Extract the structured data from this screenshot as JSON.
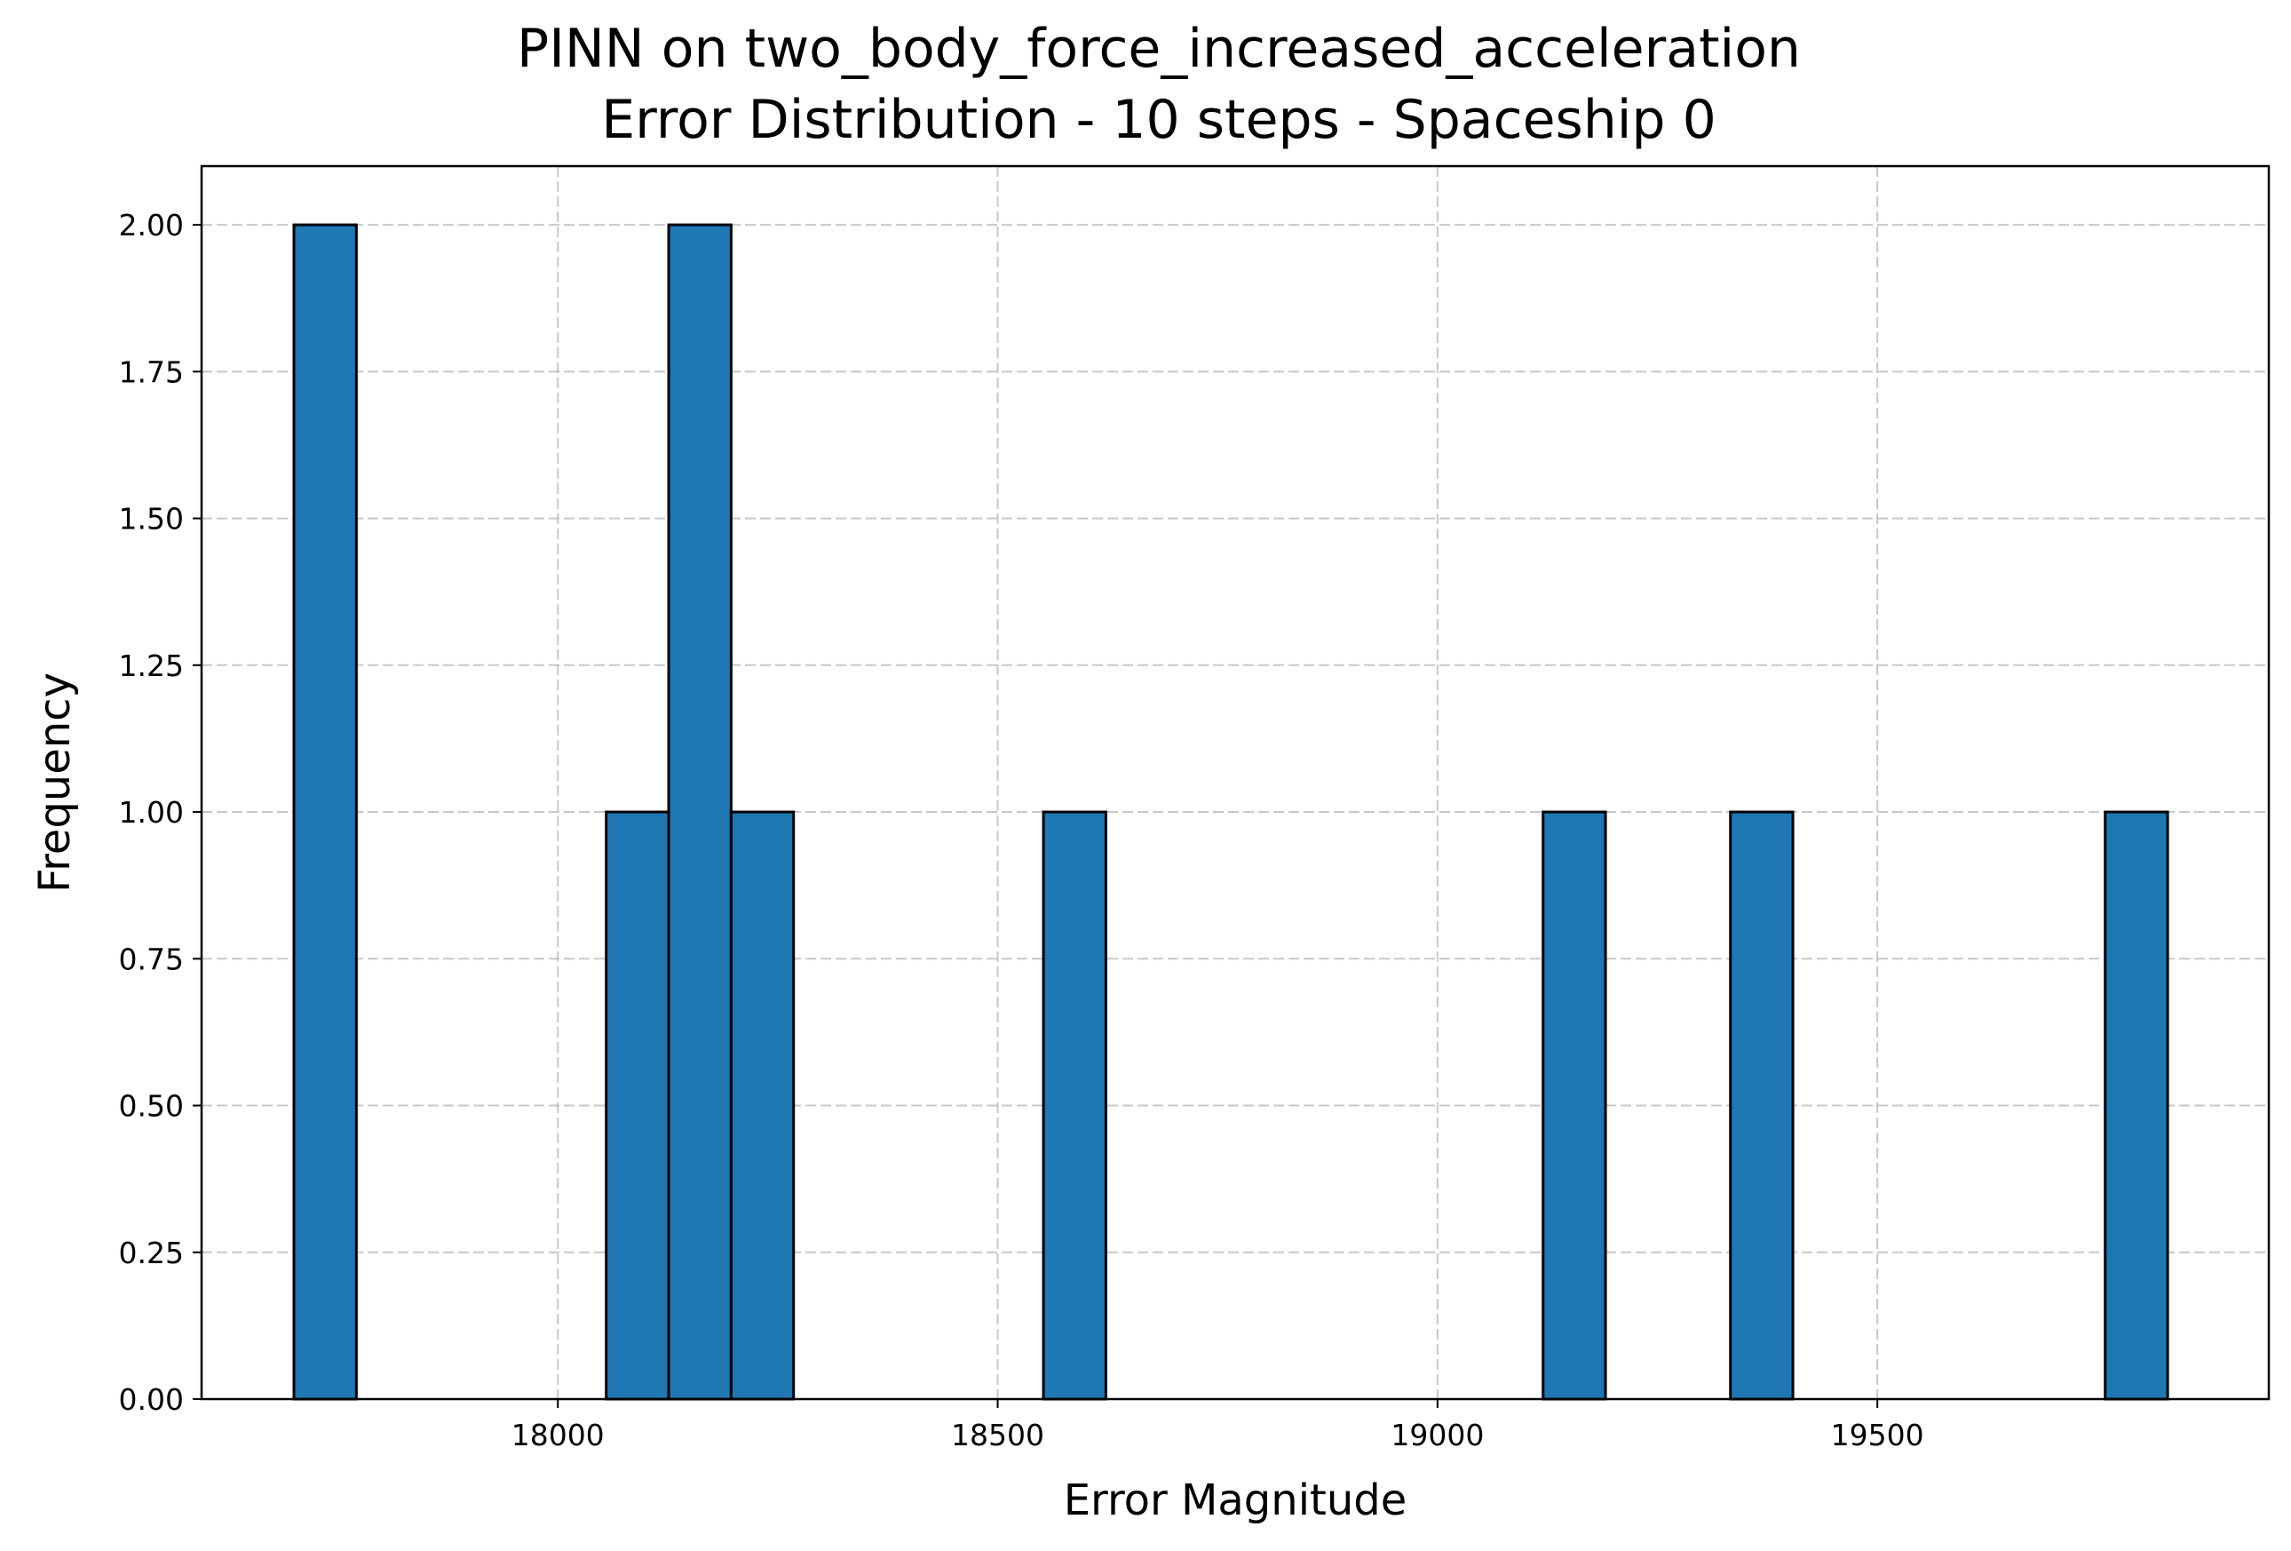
{
  "chart_data": {
    "type": "histogram",
    "title": "PINN on two_body_force_increased_acceleration",
    "subtitle": "Error Distribution - 10 steps - Spaceship 0",
    "xlabel": "Error Magnitude",
    "ylabel": "Frequency",
    "xlim": [
      17595,
      19945
    ],
    "ylim": [
      0,
      2.1
    ],
    "grid": true,
    "bar_color": "#1f77b4",
    "edge_color": "#000000",
    "bin_edges_start": 17700,
    "bin_width": 71,
    "bins": [
      {
        "start": 17700,
        "end": 17771,
        "count": 2
      },
      {
        "start": 18055,
        "end": 18126,
        "count": 1
      },
      {
        "start": 18126,
        "end": 18197,
        "count": 2
      },
      {
        "start": 18197,
        "end": 18268,
        "count": 1
      },
      {
        "start": 18552,
        "end": 18623,
        "count": 1
      },
      {
        "start": 19120,
        "end": 19191,
        "count": 1
      },
      {
        "start": 19333,
        "end": 19404,
        "count": 1
      },
      {
        "start": 19759,
        "end": 19830,
        "count": 1
      }
    ],
    "x_ticks": [
      {
        "value": 18000,
        "label": "18000"
      },
      {
        "value": 18500,
        "label": "18500"
      },
      {
        "value": 19000,
        "label": "19000"
      },
      {
        "value": 19500,
        "label": "19500"
      }
    ],
    "y_ticks": [
      {
        "value": 0.0,
        "label": "0.00"
      },
      {
        "value": 0.25,
        "label": "0.25"
      },
      {
        "value": 0.5,
        "label": "0.50"
      },
      {
        "value": 0.75,
        "label": "0.75"
      },
      {
        "value": 1.0,
        "label": "1.00"
      },
      {
        "value": 1.25,
        "label": "1.25"
      },
      {
        "value": 1.5,
        "label": "1.50"
      },
      {
        "value": 1.75,
        "label": "1.75"
      },
      {
        "value": 2.0,
        "label": "2.00"
      }
    ]
  }
}
